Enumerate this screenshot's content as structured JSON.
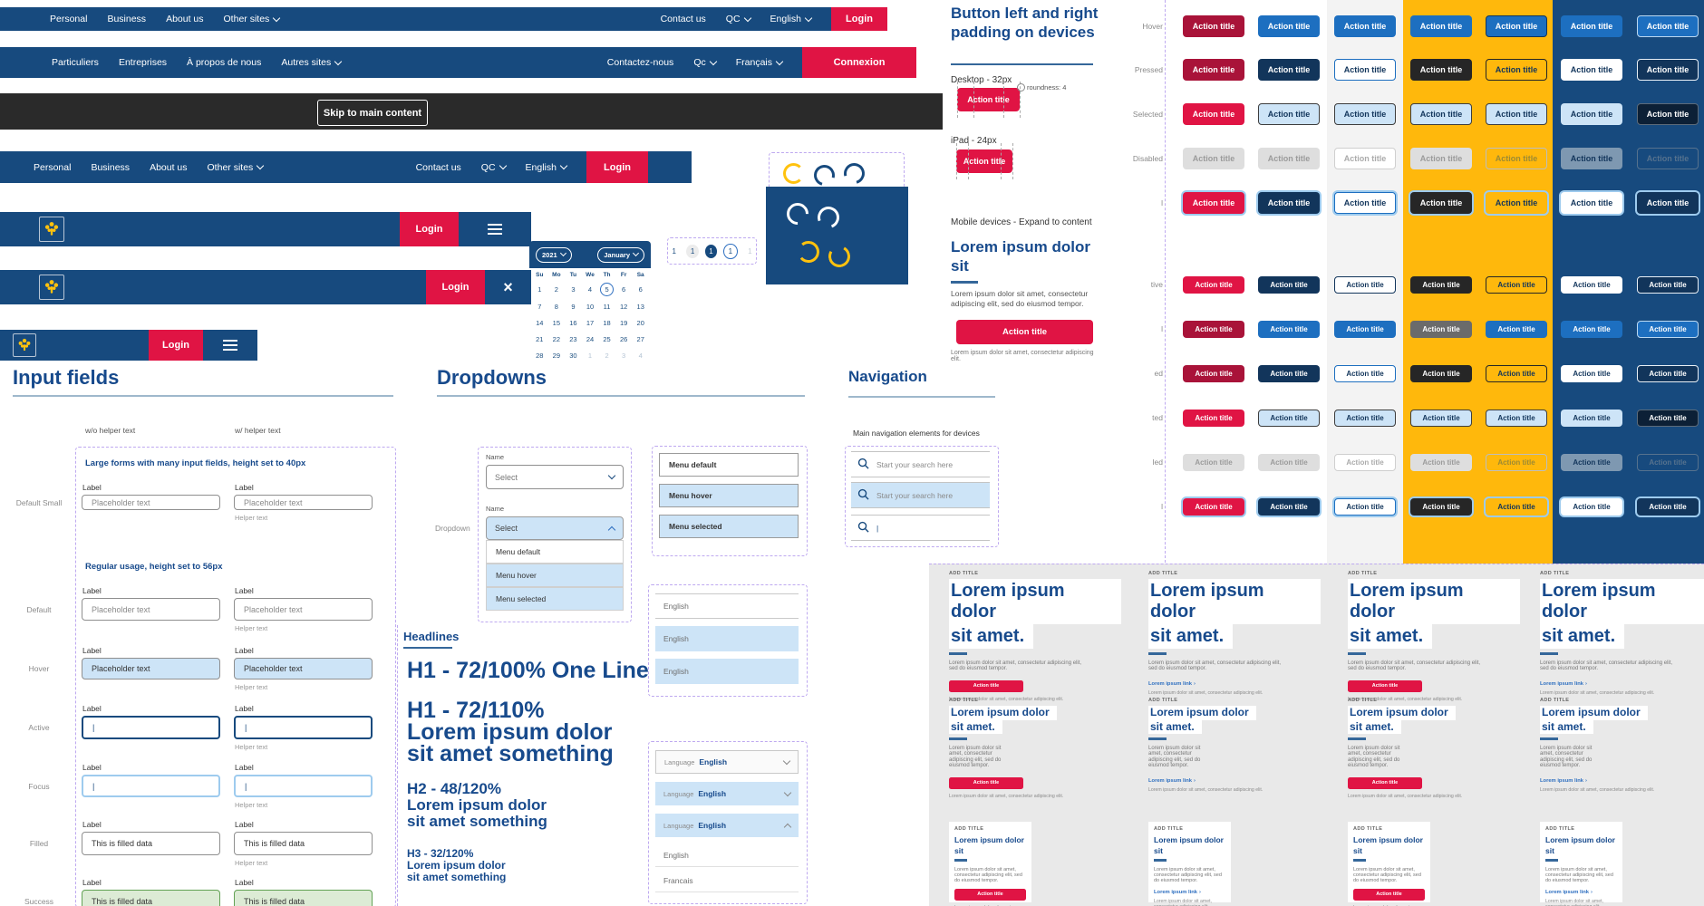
{
  "colors": {
    "navy": "#174A7E",
    "heading_navy": "#174A8C",
    "red": "#E01444",
    "dark_red": "#A91339",
    "blue": "#1D6FC0",
    "light_blue": "#CDE4F7",
    "yellow": "#FFB80C",
    "black_bar": "#2A2A2A",
    "success_green": "#DCEBD5",
    "focus_ring": "#9ECBEE",
    "dashed_purple": "#BEA9F0"
  },
  "nav_en": {
    "menu": [
      "Personal",
      "Business",
      "About us",
      "Other sites"
    ],
    "contact": "Contact us",
    "region": "QC",
    "language": "English",
    "login": "Login"
  },
  "nav_fr": {
    "menu": [
      "Particuliers",
      "Entreprises",
      "À propos de nous",
      "Autres sites"
    ],
    "contact": "Contactez-nous",
    "region": "Qc",
    "language": "Français",
    "login": "Connexion"
  },
  "skip": {
    "label": "Skip to main content"
  },
  "appbar": {
    "login": "Login"
  },
  "calendar": {
    "year": "2021",
    "month": "January",
    "day_headers": [
      "Su",
      "Mo",
      "Tu",
      "We",
      "Th",
      "Fr",
      "Sa"
    ],
    "weeks": [
      [
        "1",
        "2",
        "3",
        "4",
        "5",
        "6",
        "6"
      ],
      [
        "7",
        "8",
        "9",
        "10",
        "11",
        "12",
        "13"
      ],
      [
        "14",
        "15",
        "16",
        "17",
        "18",
        "19",
        "20"
      ],
      [
        "21",
        "22",
        "23",
        "24",
        "25",
        "26",
        "27"
      ],
      [
        "28",
        "29",
        "30",
        "1",
        "2",
        "3",
        "4"
      ]
    ],
    "selected_day": "5",
    "muted_week_index": 4,
    "muted_from": 3
  },
  "pagination": {
    "pages": [
      "1",
      "1",
      "1",
      "1",
      "1"
    ],
    "states": [
      "plain",
      "grey",
      "navy",
      "outline",
      "faint"
    ]
  },
  "spinners": {
    "light_box": [
      "yellow",
      "navy",
      "navy"
    ],
    "dark_box": [
      "white",
      "white",
      "yellow",
      "yellow"
    ]
  },
  "padding_panel": {
    "title": "Button left and right padding on devices",
    "desktop_label": "Desktop - 32px",
    "roundness_note": "roundness: 4",
    "ipad_label": "iPad - 24px",
    "mobile_note": "Mobile devices - Expand to content",
    "action": "Action title",
    "card_title": "Lorem ipsum dolor sit",
    "card_body": "Lorem ipsum dolor sit amet, consectetur adipiscing elit, sed do eiusmod tempor.",
    "card_caption": "Lorem ipsum dolor sit amet, consectetur adipiscing elit."
  },
  "button_grid": {
    "button_label": "Action title",
    "row_labels": [
      "Hover",
      "Pressed",
      "Selected",
      "Disabled",
      "l",
      "tive",
      "l",
      "ed",
      "ted",
      "led",
      "l"
    ],
    "rows": [
      [
        "dr",
        "b",
        "b",
        "b",
        "bb",
        "b",
        "bl"
      ],
      [
        "dr",
        "n",
        "wb",
        "k",
        "yb",
        "w",
        "nb"
      ],
      [
        "r",
        "lb",
        "lb",
        "lb",
        "lb",
        "lbp",
        "dn"
      ],
      [
        "gy",
        "gy",
        "gw",
        "gy",
        "yg",
        "sl",
        "ng"
      ],
      [
        "r f",
        "n f",
        "wb f",
        "k f",
        "y f",
        "w f",
        "n f"
      ],
      [
        "r",
        "n",
        "wn",
        "k",
        "yb",
        "w",
        "nb"
      ],
      [
        "dr",
        "b",
        "b",
        "kg",
        "b",
        "b",
        "bl"
      ],
      [
        "dr",
        "n",
        "wb",
        "k",
        "yb",
        "w",
        "nb"
      ],
      [
        "r",
        "lb",
        "lb",
        "lb",
        "lb",
        "lbp",
        "dn"
      ],
      [
        "gy",
        "gy",
        "gw",
        "gy",
        "yg",
        "sl",
        "ng"
      ],
      [
        "r f",
        "n f",
        "wb f",
        "k f",
        "y f",
        "w f",
        "n f"
      ]
    ]
  },
  "inputs": {
    "title": "Input fields",
    "col_headers": [
      "w/o helper text",
      "w/ helper text"
    ],
    "note_small": "Large forms with many input fields, height set to 40px",
    "note_regular": "Regular usage, height set to 56px",
    "field_label": "Label",
    "helper": "Helper text",
    "placeholder": "Placeholder text",
    "filled_value": "This is filled data",
    "states": [
      "Default Small",
      "Default",
      "Hover",
      "Active",
      "Focus",
      "Filled",
      "Success"
    ]
  },
  "dropdowns": {
    "title": "Dropdowns",
    "row_label": "Dropdown",
    "name_label": "Name",
    "select_placeholder": "Select",
    "menu_items": [
      "Menu default",
      "Menu hover",
      "Menu selected"
    ],
    "english_items": [
      "English",
      "English",
      "English"
    ],
    "language_label": "Language",
    "language_value": "English",
    "language_options": [
      "English",
      "Francais"
    ]
  },
  "headlines": {
    "title": "Headlines",
    "h1_one_line": "H1 - 72/100% One Line",
    "h1_spec": "H1 - 72/110%",
    "h1_line1": "Lorem ipsum dolor",
    "h1_line2": "sit amet something",
    "h2_spec": "H2 - 48/120%",
    "h2_line1": "Lorem ipsum dolor",
    "h2_line2": "sit amet something",
    "h3_spec": "H3 - 32/120%",
    "h3_line1": "Lorem ipsum dolor",
    "h3_line2": "sit amet something"
  },
  "navigation": {
    "title": "Navigation",
    "note": "Main navigation elements for devices",
    "placeholder": "Start your search here"
  },
  "cards": {
    "eyebrow": "ADD TITLE",
    "title_lines_large": [
      "Lorem ipsum dolor",
      "sit amet."
    ],
    "title_lines_small": [
      "Lorem ipsum dolor",
      "sit"
    ],
    "body": "Lorem ipsum dolor sit amet, consectetur adipiscing elit, sed do eiusmod tempor.",
    "caption": "Lorem ipsum dolor sit amet, consectetur adipiscing elit.",
    "action": "Action title",
    "link": "Lorem ipsum link",
    "link_arrow": "›"
  }
}
